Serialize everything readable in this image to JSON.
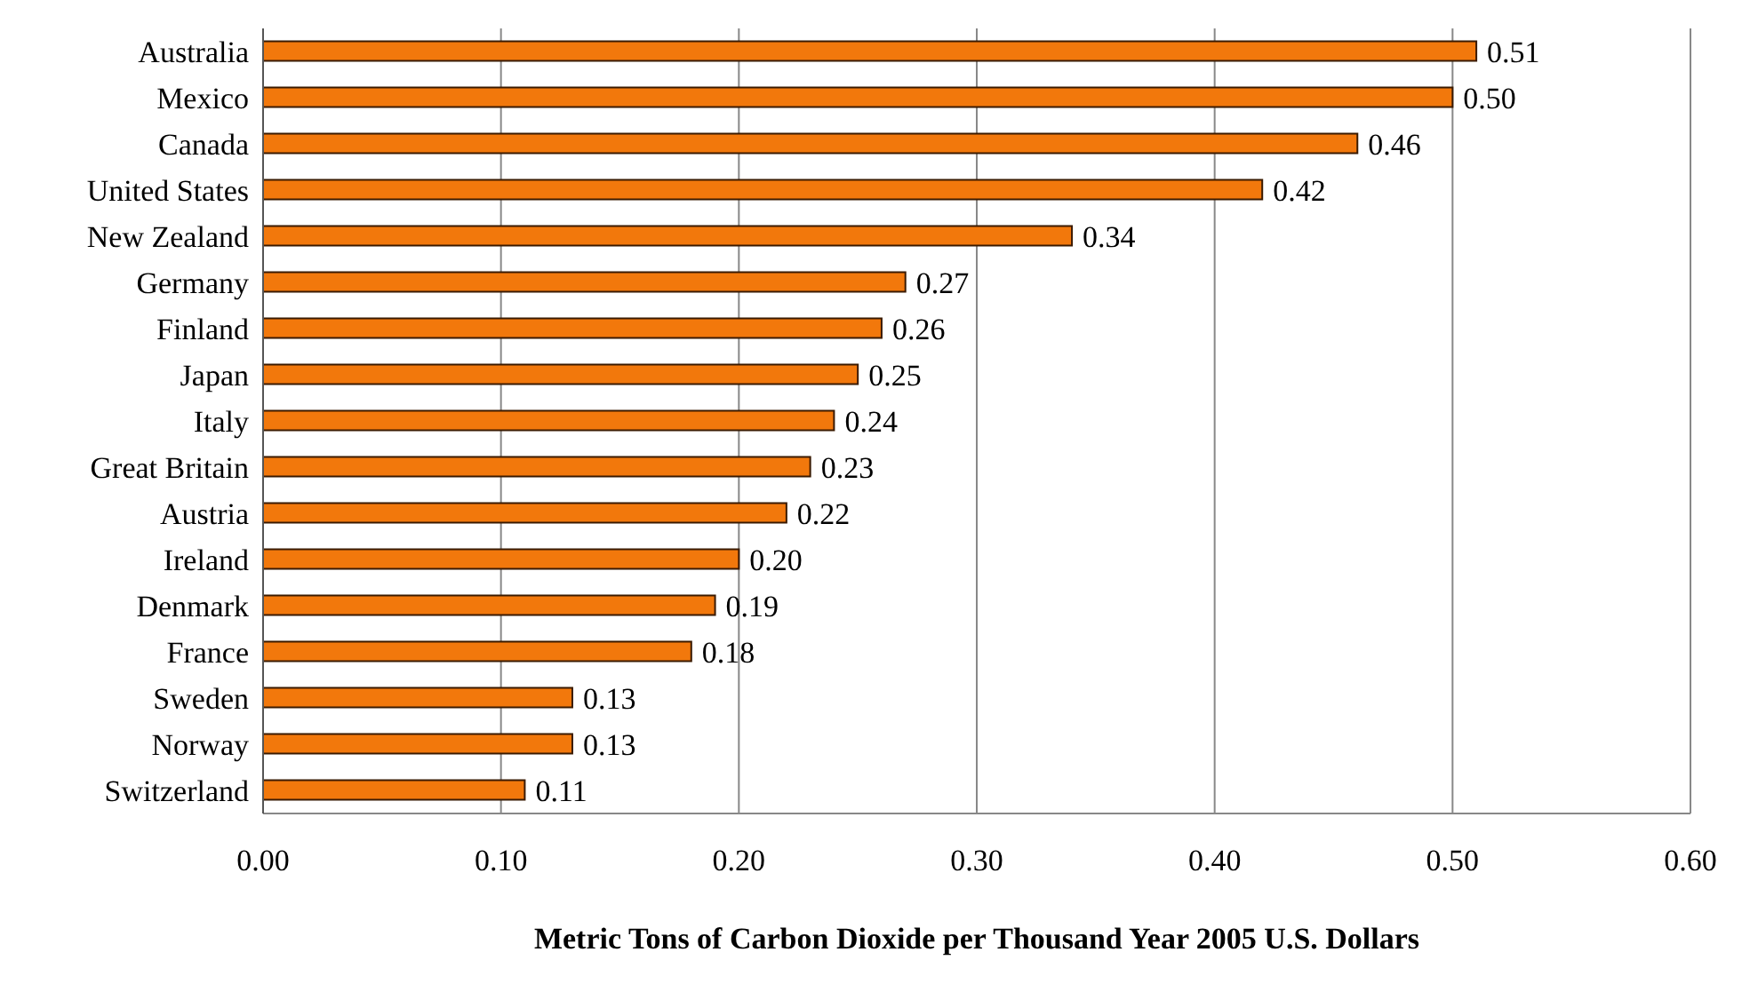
{
  "chart_data": {
    "type": "bar",
    "orientation": "horizontal",
    "xlabel": "Metric Tons of Carbon Dioxide per Thousand Year 2005 U.S. Dollars",
    "categories": [
      "Australia",
      "Mexico",
      "Canada",
      "United States",
      "New Zealand",
      "Germany",
      "Finland",
      "Japan",
      "Italy",
      "Great Britain",
      "Austria",
      "Ireland",
      "Denmark",
      "France",
      "Sweden",
      "Norway",
      "Switzerland"
    ],
    "values": [
      0.51,
      0.5,
      0.46,
      0.42,
      0.34,
      0.27,
      0.26,
      0.25,
      0.24,
      0.23,
      0.22,
      0.2,
      0.19,
      0.18,
      0.13,
      0.13,
      0.11
    ],
    "value_labels": [
      "0.51",
      "0.50",
      "0.46",
      "0.42",
      "0.34",
      "0.27",
      "0.26",
      "0.25",
      "0.24",
      "0.23",
      "0.22",
      "0.20",
      "0.19",
      "0.18",
      "0.13",
      "0.13",
      "0.11"
    ],
    "color": "#f2780c",
    "xlim": [
      0,
      0.6
    ],
    "xticks": [
      {
        "value": 0,
        "label": "0.00"
      },
      {
        "value": 0.1,
        "label": "0.10"
      },
      {
        "value": 0.2,
        "label": "0.20"
      },
      {
        "value": 0.3,
        "label": "0.30"
      },
      {
        "value": 0.4,
        "label": "0.40"
      },
      {
        "value": 0.5,
        "label": "0.50"
      },
      {
        "value": 0.6,
        "label": "0.60"
      }
    ],
    "grid": "x"
  }
}
